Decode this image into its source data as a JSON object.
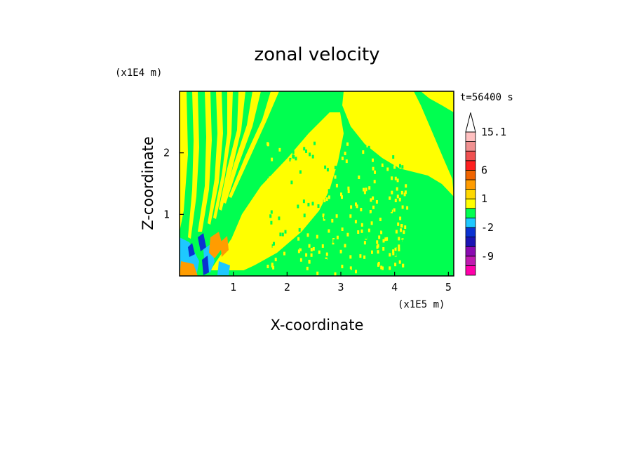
{
  "chart_data": {
    "type": "heatmap",
    "title": "zonal velocity",
    "xlabel": "X-coordinate",
    "ylabel": "Z-coordinate",
    "x_scale_label": "(x1E5 m)",
    "y_scale_label": "(x1E4 m)",
    "time_label": "t=56400 s",
    "xlim": [
      0,
      5.1
    ],
    "ylim": [
      0,
      3.0
    ],
    "x_ticks": [
      {
        "value": 1,
        "label": "1"
      },
      {
        "value": 2,
        "label": "2"
      },
      {
        "value": 3,
        "label": "3"
      },
      {
        "value": 4,
        "label": "4"
      },
      {
        "value": 5,
        "label": "5"
      }
    ],
    "y_ticks": [
      {
        "value": 1,
        "label": "1"
      },
      {
        "value": 2,
        "label": "2"
      }
    ],
    "colorbar": {
      "colors": [
        "#ff00aa",
        "#c01ab0",
        "#8a0ab0",
        "#1a14b4",
        "#0a32d2",
        "#1ec8ff",
        "#00ff50",
        "#ffff00",
        "#ffd800",
        "#ff9c00",
        "#f06400",
        "#ff2020",
        "#f05050",
        "#f09090",
        "#ffc0c0",
        "#ffffff"
      ],
      "labeled_levels": [
        {
          "index": 15,
          "label": "15.1"
        },
        {
          "index": 11,
          "label": "6"
        },
        {
          "index": 8,
          "label": "1"
        },
        {
          "index": 5,
          "label": "-2"
        },
        {
          "index": 2,
          "label": "-9"
        }
      ]
    },
    "field_features": [
      {
        "name": "background",
        "color": "#00ff50"
      },
      {
        "name": "upper-left striations",
        "color": "#ffff00"
      },
      {
        "name": "central yellow wedge",
        "color": "#ffff00"
      },
      {
        "name": "right yellow wedge",
        "color": "#ffff00"
      },
      {
        "name": "source region cyan",
        "color": "#1ec8ff"
      },
      {
        "name": "source region blue",
        "color": "#0a32d2"
      },
      {
        "name": "source region orange",
        "color": "#ff9c00"
      }
    ]
  }
}
